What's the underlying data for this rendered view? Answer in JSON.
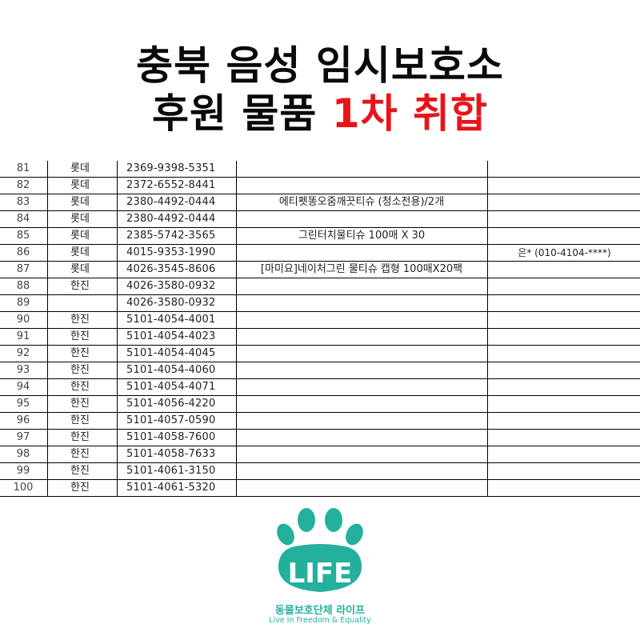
{
  "header": {
    "line1": "충북 음성 임시보호소",
    "line2_black": "후원 물품",
    "line2_red": "1차 취합"
  },
  "rows": [
    {
      "num": "81",
      "carrier": "롯데",
      "tracking": "2369-9398-5351",
      "item": "",
      "sender": ""
    },
    {
      "num": "82",
      "carrier": "롯데",
      "tracking": "2372-6552-8441",
      "item": "",
      "sender": ""
    },
    {
      "num": "83",
      "carrier": "롯데",
      "tracking": "2380-4492-0444",
      "item": "에티펫똥오줌깨끗티슈 (청소전용)/2개",
      "sender": ""
    },
    {
      "num": "84",
      "carrier": "롯데",
      "tracking": "2380-4492-0444",
      "item": "",
      "sender": ""
    },
    {
      "num": "85",
      "carrier": "롯데",
      "tracking": "2385-5742-3565",
      "item": "그린터치물티슈 100매 X 30",
      "sender": ""
    },
    {
      "num": "86",
      "carrier": "롯데",
      "tracking": "4015-9353-1990",
      "item": "",
      "sender": "은* (010-4104-****)"
    },
    {
      "num": "87",
      "carrier": "롯데",
      "tracking": "4026-3545-8606",
      "item": "[마미요]네이처그린 물티슈 캡형 100매X20팩",
      "sender": ""
    },
    {
      "num": "88",
      "carrier": "한진",
      "tracking": "4026-3580-0932",
      "item": "",
      "sender": ""
    },
    {
      "num": "89",
      "carrier": "",
      "tracking": "4026-3580-0932",
      "item": "",
      "sender": ""
    },
    {
      "num": "90",
      "carrier": "한진",
      "tracking": "5101-4054-4001",
      "item": "",
      "sender": ""
    },
    {
      "num": "91",
      "carrier": "한진",
      "tracking": "5101-4054-4023",
      "item": "",
      "sender": ""
    },
    {
      "num": "92",
      "carrier": "한진",
      "tracking": "5101-4054-4045",
      "item": "",
      "sender": ""
    },
    {
      "num": "93",
      "carrier": "한진",
      "tracking": "5101-4054-4060",
      "item": "",
      "sender": ""
    },
    {
      "num": "94",
      "carrier": "한진",
      "tracking": "5101-4054-4071",
      "item": "",
      "sender": ""
    },
    {
      "num": "95",
      "carrier": "한진",
      "tracking": "5101-4056-4220",
      "item": "",
      "sender": ""
    },
    {
      "num": "96",
      "carrier": "한진",
      "tracking": "5101-4057-0590",
      "item": "",
      "sender": ""
    },
    {
      "num": "97",
      "carrier": "한진",
      "tracking": "5101-4058-7600",
      "item": "",
      "sender": ""
    },
    {
      "num": "98",
      "carrier": "한진",
      "tracking": "5101-4058-7633",
      "item": "",
      "sender": ""
    },
    {
      "num": "99",
      "carrier": "한진",
      "tracking": "5101-4061-3150",
      "item": "",
      "sender": ""
    },
    {
      "num": "100",
      "carrier": "한진",
      "tracking": "5101-4061-5320",
      "item": "",
      "sender": ""
    }
  ],
  "logo": {
    "mark_text": "LIFE",
    "name_kr": "동물보호단체 라이프",
    "tagline": "Live In Freedom & Equality",
    "color": "#23b09d",
    "icon": "paw-icon"
  },
  "colors": {
    "title": "#0a0a0a",
    "title_accent": "#e8141a"
  }
}
